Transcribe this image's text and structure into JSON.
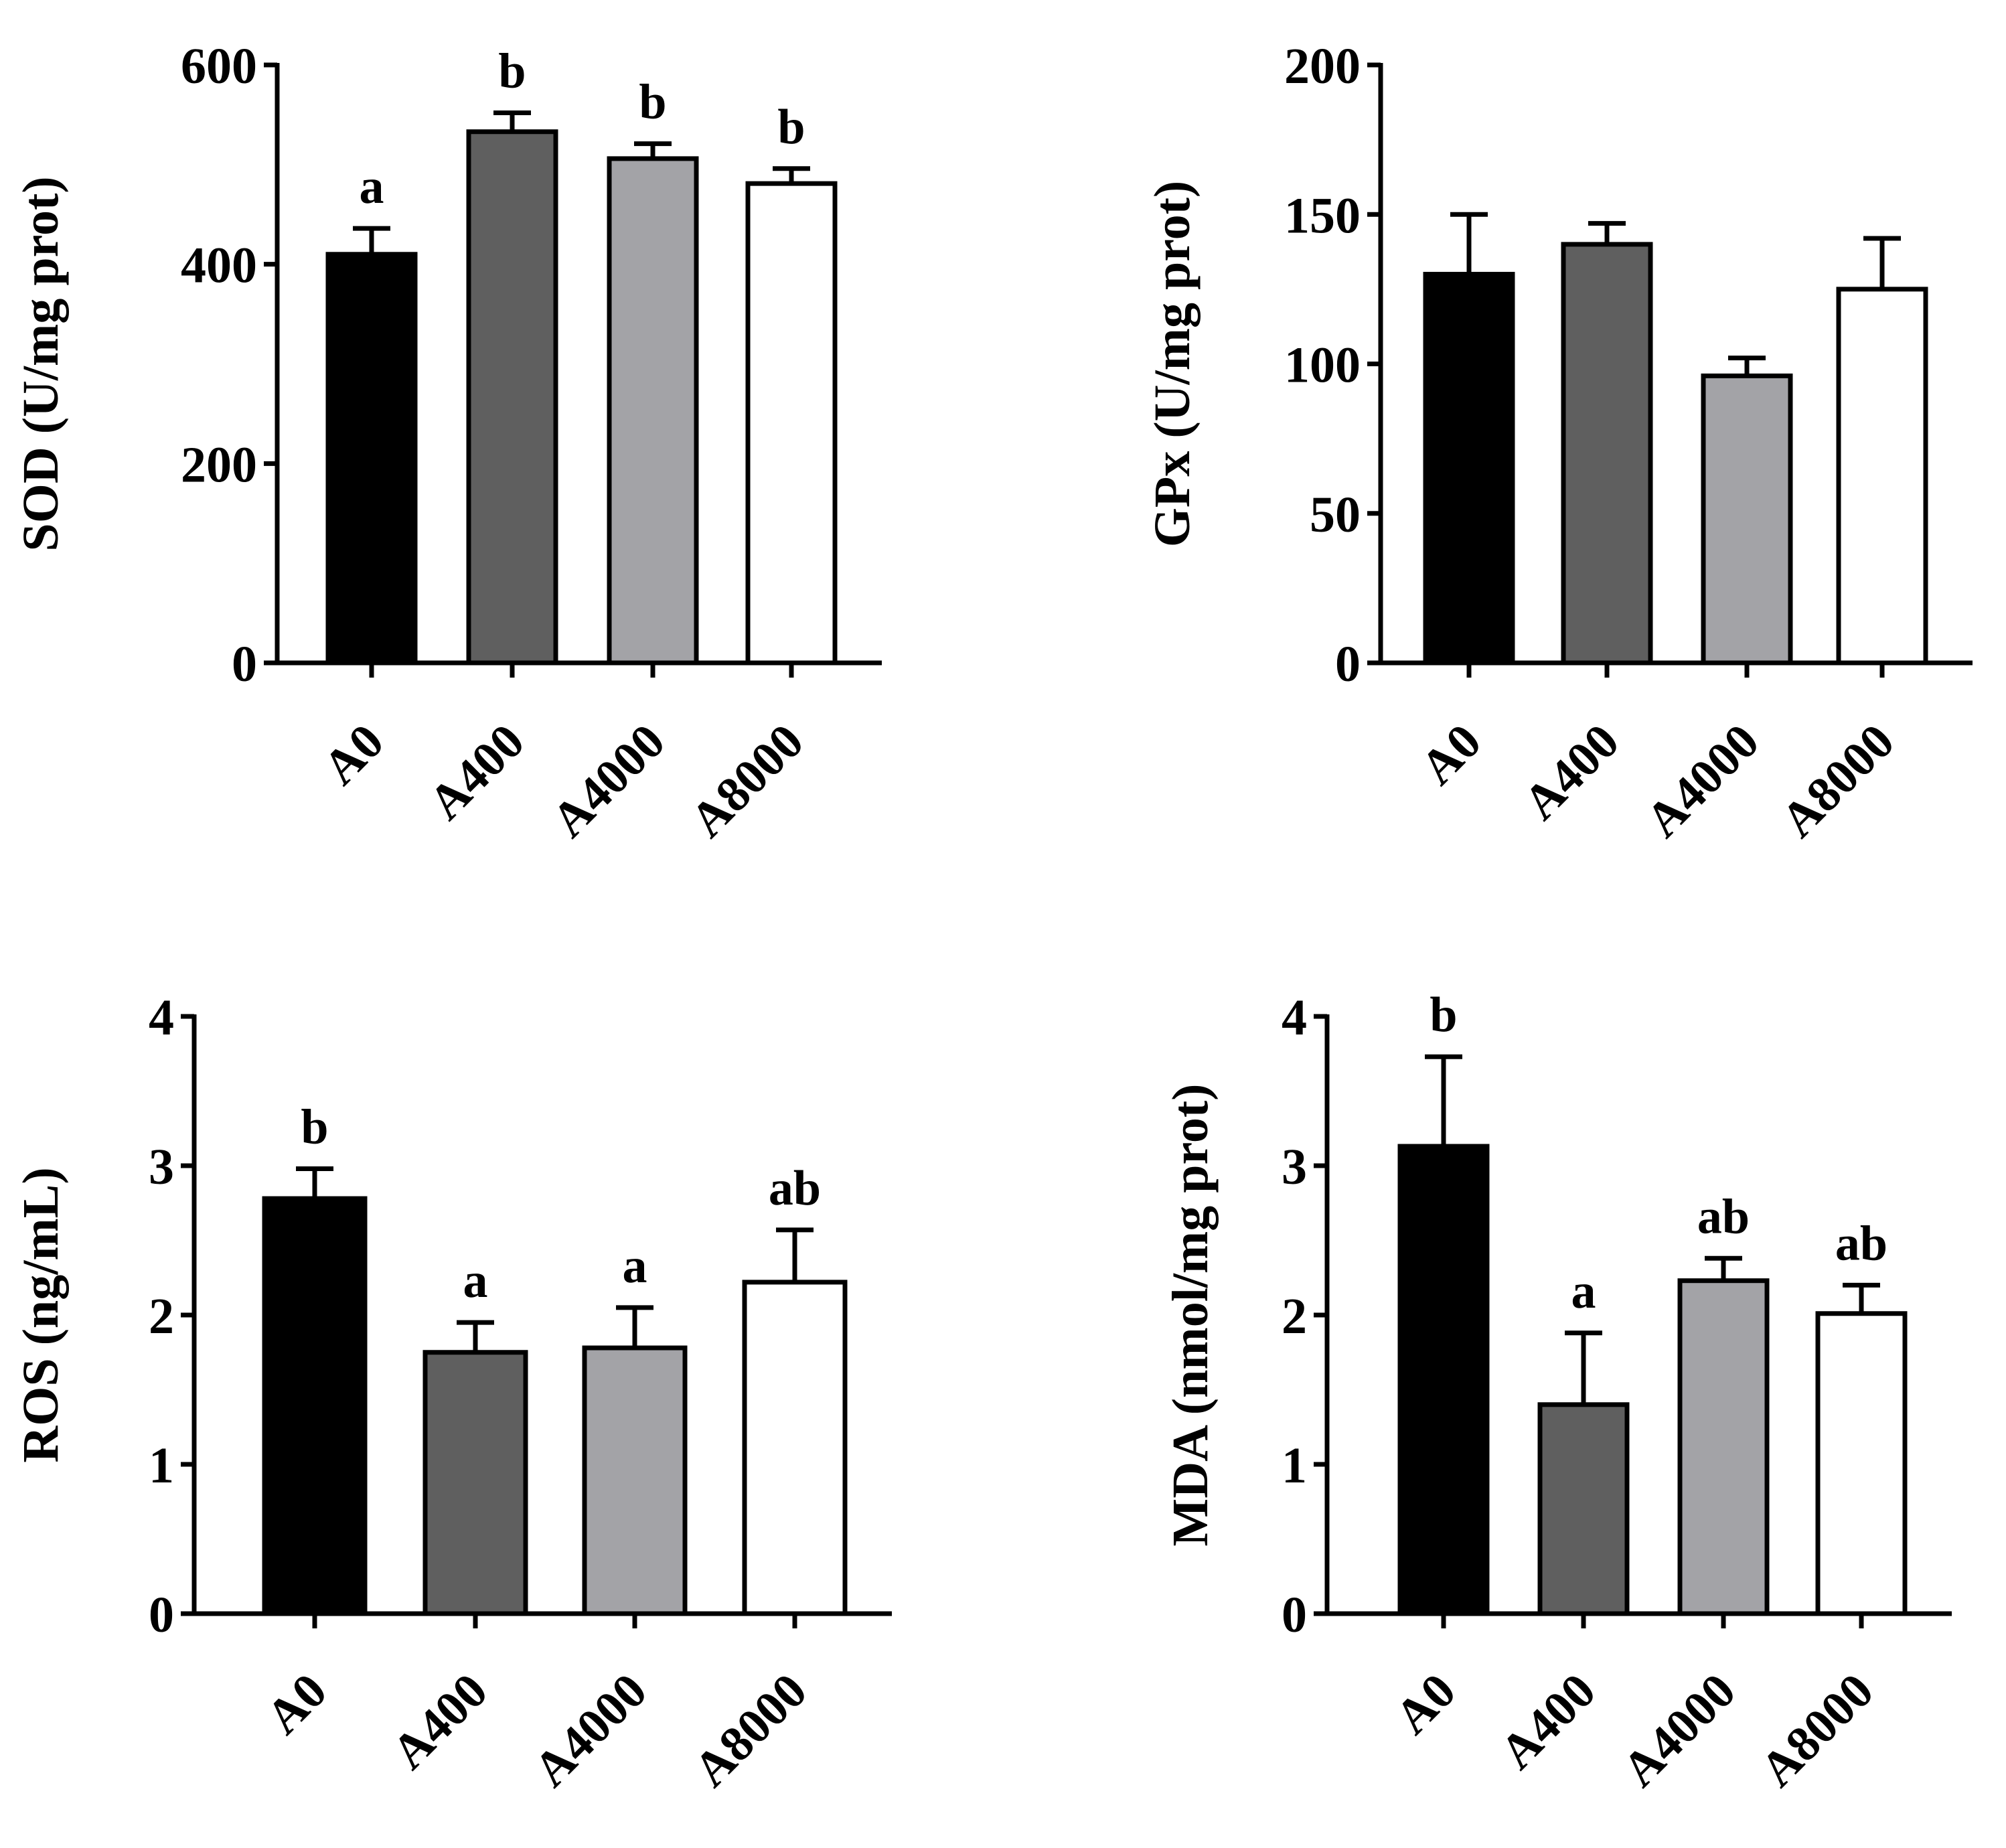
{
  "figure": {
    "colors": {
      "bar_fills": [
        "#000000",
        "#5f5f5f",
        "#a3a3a7",
        "#ffffff"
      ],
      "stroke": "#000000"
    }
  },
  "chart_data": [
    {
      "type": "bar",
      "panel": "top-left",
      "categories": [
        "A0",
        "A400",
        "A4000",
        "A8000"
      ],
      "values": [
        410,
        533,
        506,
        481
      ],
      "errors": [
        26,
        19,
        15,
        15
      ],
      "significance": [
        "a",
        "b",
        "b",
        "b"
      ],
      "title": "",
      "xlabel": "",
      "ylabel": "SOD (U/mg prot)",
      "ylim": [
        0,
        600
      ],
      "yticks": [
        0,
        200,
        400,
        600
      ]
    },
    {
      "type": "bar",
      "panel": "top-right",
      "categories": [
        "A0",
        "A400",
        "A4000",
        "A8000"
      ],
      "values": [
        130,
        140,
        96,
        125
      ],
      "errors": [
        20,
        7,
        6,
        17
      ],
      "significance": [
        "",
        "",
        "",
        ""
      ],
      "title": "",
      "xlabel": "",
      "ylabel": "GPx (U/mg prot)",
      "ylim": [
        0,
        200
      ],
      "yticks": [
        0,
        50,
        100,
        150,
        200
      ]
    },
    {
      "type": "bar",
      "panel": "bottom-left",
      "categories": [
        "A0",
        "A400",
        "A4000",
        "A8000"
      ],
      "values": [
        2.78,
        1.75,
        1.78,
        2.22
      ],
      "errors": [
        0.2,
        0.2,
        0.27,
        0.35
      ],
      "significance": [
        "b",
        "a",
        "a",
        "ab"
      ],
      "title": "",
      "xlabel": "",
      "ylabel": "ROS (ng/mL)",
      "ylim": [
        0,
        4
      ],
      "yticks": [
        0,
        1,
        2,
        3,
        4
      ]
    },
    {
      "type": "bar",
      "panel": "bottom-right",
      "categories": [
        "A0",
        "A400",
        "A4000",
        "A8000"
      ],
      "values": [
        3.13,
        1.4,
        2.23,
        2.01
      ],
      "errors": [
        0.6,
        0.48,
        0.15,
        0.19
      ],
      "significance": [
        "b",
        "a",
        "ab",
        "ab"
      ],
      "title": "",
      "xlabel": "",
      "ylabel": "MDA (nmol/mg prot)",
      "ylim": [
        0,
        4
      ],
      "yticks": [
        0,
        1,
        2,
        3,
        4
      ]
    }
  ]
}
